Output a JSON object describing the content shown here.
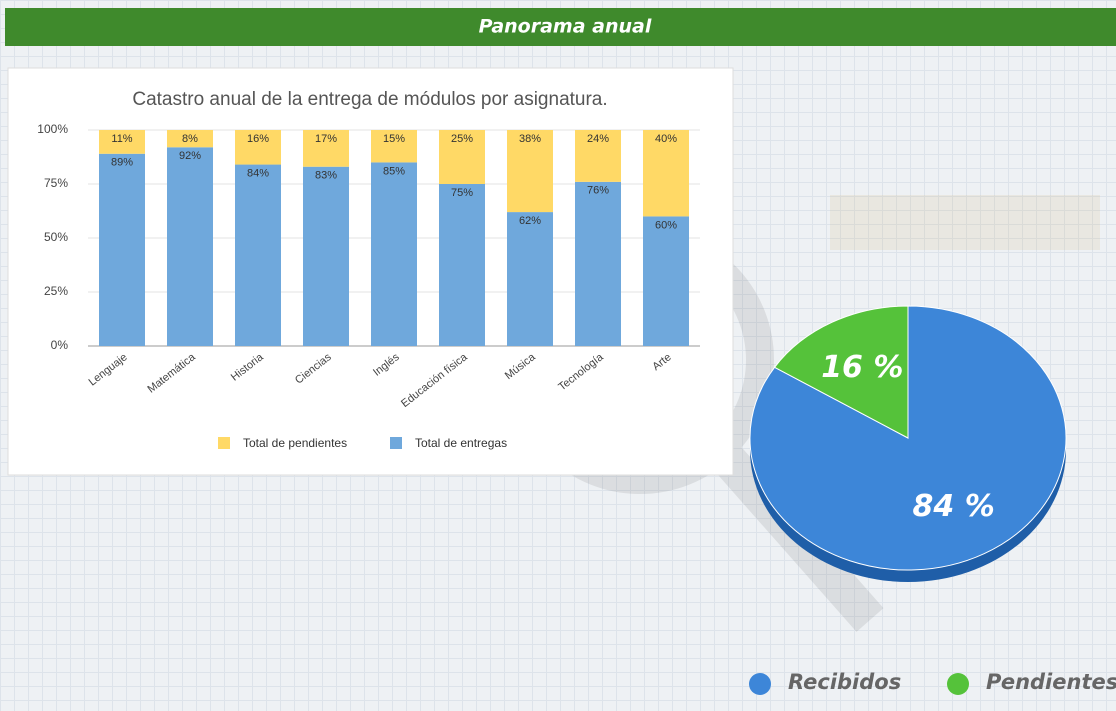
{
  "header": {
    "title": "Panorama anual"
  },
  "chart_data": [
    {
      "type": "stacked_bar",
      "title": "Catastro anual de la entrega de módulos por asignatura.",
      "categories": [
        "Lenguaje",
        "Matemática",
        "Historia",
        "Ciencias",
        "Inglés",
        "Educación física",
        "Música",
        "Tecnología",
        "Arte"
      ],
      "series": [
        {
          "name": "Total de entregas",
          "color": "#6fa8dc",
          "values": [
            89,
            92,
            84,
            83,
            85,
            75,
            62,
            76,
            60
          ],
          "value_labels": [
            "89%",
            "92%",
            "84%",
            "83%",
            "85%",
            "75%",
            "62%",
            "76%",
            "60%"
          ]
        },
        {
          "name": "Total de pendientes",
          "color": "#ffd966",
          "values": [
            11,
            8,
            16,
            17,
            15,
            25,
            38,
            24,
            40
          ],
          "value_labels": [
            "11%",
            "8%",
            "16%",
            "17%",
            "15%",
            "25%",
            "38%",
            "24%",
            "40%"
          ]
        }
      ],
      "ylim": [
        0,
        100
      ],
      "yticks": [
        {
          "value": 0,
          "label": "0%"
        },
        {
          "value": 25,
          "label": "25%"
        },
        {
          "value": 50,
          "label": "50%"
        },
        {
          "value": 75,
          "label": "75%"
        },
        {
          "value": 100,
          "label": "100%"
        }
      ],
      "grid": true
    },
    {
      "type": "pie",
      "categories": [
        "Recibidos",
        "Pendientes"
      ],
      "values": [
        84,
        16
      ],
      "value_labels": [
        "84 %",
        "16 %"
      ],
      "colors": [
        "#3d86d8",
        "#55c23a"
      ]
    }
  ]
}
